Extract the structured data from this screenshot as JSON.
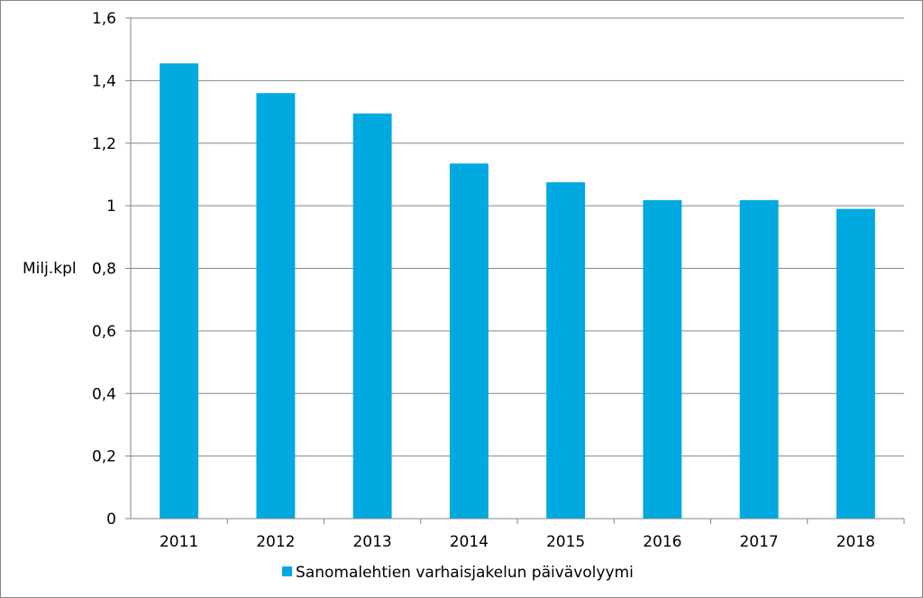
{
  "chart_data": {
    "type": "bar",
    "categories": [
      "2011",
      "2012",
      "2013",
      "2014",
      "2015",
      "2016",
      "2017",
      "2018"
    ],
    "series": [
      {
        "name": "Sanomalehtien varhaisjakelun päivävolyymi",
        "values": [
          1.455,
          1.36,
          1.295,
          1.135,
          1.075,
          1.018,
          1.018,
          0.99
        ],
        "color": "#00A9E0"
      }
    ],
    "ylabel": "Milj.kpl",
    "xlabel": "",
    "ylim": [
      0,
      1.6
    ],
    "yticks": [
      "0",
      "0,2",
      "0,4",
      "0,6",
      "0,8",
      "1",
      "1,2",
      "1,4",
      "1,6"
    ],
    "grid": true,
    "legend_position": "bottom"
  }
}
